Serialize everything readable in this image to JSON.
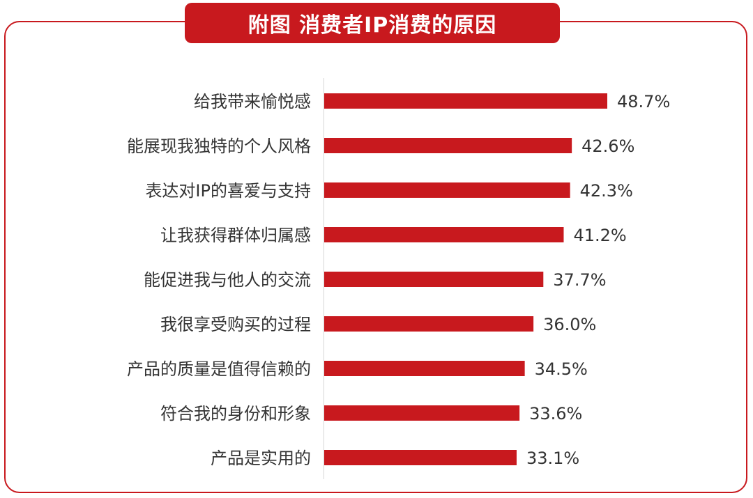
{
  "title": "附图 消费者IP消费的原因",
  "colors": {
    "accent": "#c8191e",
    "text": "#333333",
    "axis": "#d6d6d6"
  },
  "chart_data": {
    "type": "bar",
    "orientation": "horizontal",
    "title": "附图 消费者IP消费的原因",
    "categories": [
      "给我带来愉悦感",
      "能展现我独特的个人风格",
      "表达对IP的喜爱与支持",
      "让我获得群体归属感",
      "能促进我与他人的交流",
      "我很享受购买的过程",
      "产品的质量是值得信赖的",
      "符合我的身份和形象",
      "产品是实用的"
    ],
    "values": [
      48.7,
      42.6,
      42.3,
      41.2,
      37.7,
      36.0,
      34.5,
      33.6,
      33.1
    ],
    "value_labels": [
      "48.7%",
      "42.6%",
      "42.3%",
      "41.2%",
      "37.7%",
      "36.0%",
      "34.5%",
      "33.6%",
      "33.1%"
    ],
    "unit": "%",
    "xlim": [
      0,
      48.7
    ],
    "grid": false,
    "legend": "none"
  }
}
